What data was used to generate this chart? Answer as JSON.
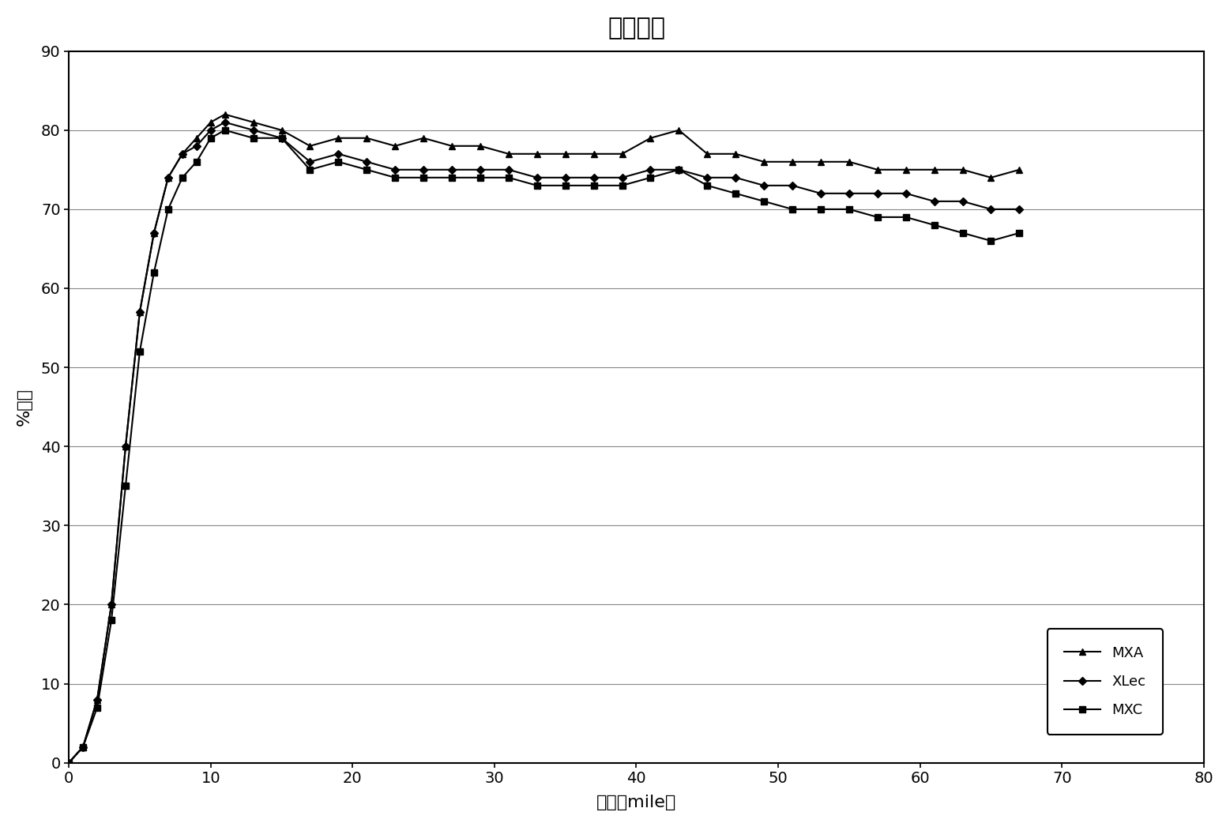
{
  "title": "性能曲线",
  "xlabel": "距离（mile）",
  "ylabel": "%减阻",
  "xlim": [
    0,
    80
  ],
  "ylim": [
    0,
    90
  ],
  "xticks": [
    0,
    10,
    20,
    30,
    40,
    50,
    60,
    70,
    80
  ],
  "yticks": [
    0,
    10,
    20,
    30,
    40,
    50,
    60,
    70,
    80,
    90
  ],
  "series": {
    "MXA": {
      "x": [
        0,
        1,
        2,
        3,
        4,
        5,
        6,
        7,
        8,
        9,
        10,
        11,
        13,
        15,
        17,
        19,
        21,
        23,
        25,
        27,
        29,
        31,
        33,
        35,
        37,
        39,
        41,
        43,
        45,
        47,
        49,
        51,
        53,
        55,
        57,
        59,
        61,
        63,
        65,
        67
      ],
      "y": [
        0,
        2,
        8,
        20,
        40,
        57,
        67,
        74,
        77,
        79,
        81,
        82,
        81,
        80,
        78,
        79,
        79,
        78,
        79,
        78,
        78,
        77,
        77,
        77,
        77,
        77,
        79,
        80,
        77,
        77,
        76,
        76,
        76,
        76,
        75,
        75,
        75,
        75,
        74,
        75
      ],
      "color": "#000000",
      "marker": "^",
      "markersize": 6,
      "linewidth": 1.5,
      "label": "MXA"
    },
    "XLec": {
      "x": [
        0,
        1,
        2,
        3,
        4,
        5,
        6,
        7,
        8,
        9,
        10,
        11,
        13,
        15,
        17,
        19,
        21,
        23,
        25,
        27,
        29,
        31,
        33,
        35,
        37,
        39,
        41,
        43,
        45,
        47,
        49,
        51,
        53,
        55,
        57,
        59,
        61,
        63,
        65,
        67
      ],
      "y": [
        0,
        2,
        8,
        20,
        40,
        57,
        67,
        74,
        77,
        78,
        80,
        81,
        80,
        79,
        76,
        77,
        76,
        75,
        75,
        75,
        75,
        75,
        74,
        74,
        74,
        74,
        75,
        75,
        74,
        74,
        73,
        73,
        72,
        72,
        72,
        72,
        71,
        71,
        70,
        70
      ],
      "color": "#000000",
      "marker": "D",
      "markersize": 5,
      "linewidth": 1.5,
      "label": "XLec"
    },
    "MXC": {
      "x": [
        0,
        1,
        2,
        3,
        4,
        5,
        6,
        7,
        8,
        9,
        10,
        11,
        13,
        15,
        17,
        19,
        21,
        23,
        25,
        27,
        29,
        31,
        33,
        35,
        37,
        39,
        41,
        43,
        45,
        47,
        49,
        51,
        53,
        55,
        57,
        59,
        61,
        63,
        65,
        67
      ],
      "y": [
        0,
        2,
        7,
        18,
        35,
        52,
        62,
        70,
        74,
        76,
        79,
        80,
        79,
        79,
        75,
        76,
        75,
        74,
        74,
        74,
        74,
        74,
        73,
        73,
        73,
        73,
        74,
        75,
        73,
        72,
        71,
        70,
        70,
        70,
        69,
        69,
        68,
        67,
        66,
        67
      ],
      "color": "#000000",
      "marker": "s",
      "markersize": 6,
      "linewidth": 1.5,
      "label": "MXC"
    }
  },
  "plot_bgcolor": "#ffffff",
  "fig_bgcolor": "#ffffff",
  "grid_color": "#888888",
  "border_color": "#000000",
  "title_fontsize": 22,
  "label_fontsize": 16,
  "tick_fontsize": 14,
  "legend_fontsize": 13
}
